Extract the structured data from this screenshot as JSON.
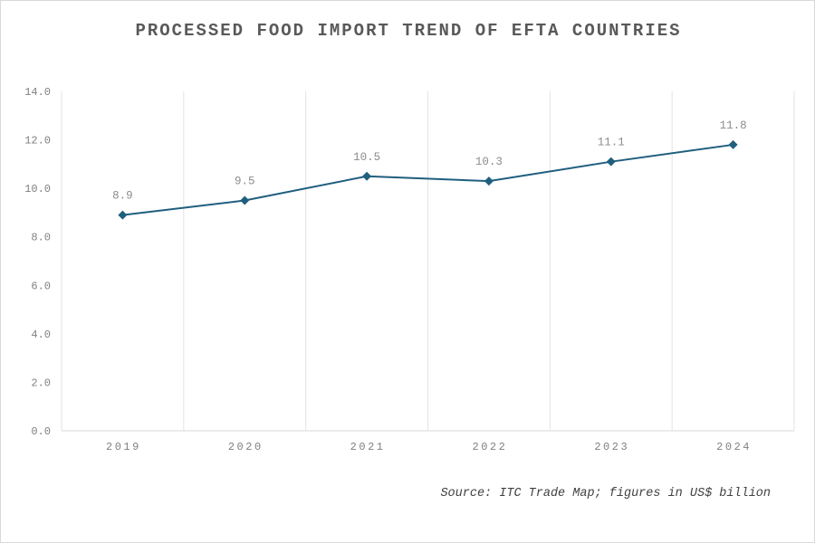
{
  "chart_data": {
    "type": "line",
    "title": "PROCESSED FOOD IMPORT TREND OF EFTA COUNTRIES",
    "categories": [
      "2019",
      "2020",
      "2021",
      "2022",
      "2023",
      "2024"
    ],
    "series": [
      {
        "values": [
          8.9,
          9.5,
          10.5,
          10.3,
          11.1,
          11.8
        ],
        "color": "#1f5f7f",
        "marker": "diamond"
      }
    ],
    "data_labels": [
      "8.9",
      "9.5",
      "10.5",
      "10.3",
      "11.1",
      "11.8"
    ],
    "xlabel": "",
    "ylabel": "",
    "ylim": [
      0,
      14
    ],
    "yticks": [
      "0.0",
      "2.0",
      "4.0",
      "6.0",
      "8.0",
      "10.0",
      "12.0",
      "14.0"
    ],
    "grid": "vertical",
    "legend": "none",
    "source": "Source: ITC Trade Map; figures in US$ billion"
  }
}
